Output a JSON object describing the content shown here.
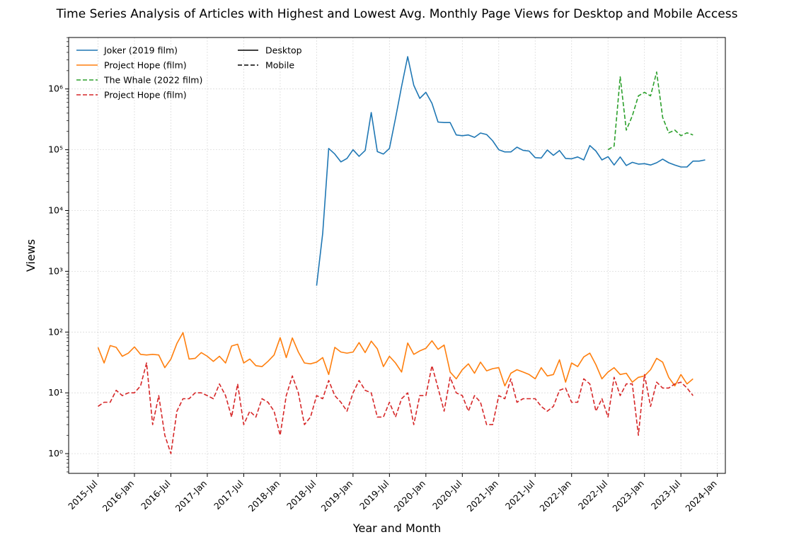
{
  "chart_data": {
    "type": "line",
    "title": "Time Series Analysis of Articles with Highest and Lowest Avg. Monthly Page Views for Desktop and Mobile Access",
    "xlabel": "Year and Month",
    "ylabel": "Views",
    "yscale": "log",
    "ylim": [
      0.5,
      7000000
    ],
    "xlim": [
      "2015-04",
      "2024-03"
    ],
    "grid": true,
    "legend_position": "top-left",
    "x_ticks": [
      "2015-Jul",
      "2016-Jan",
      "2016-Jul",
      "2017-Jan",
      "2017-Jul",
      "2018-Jan",
      "2018-Jul",
      "2019-Jan",
      "2019-Jul",
      "2020-Jan",
      "2020-Jul",
      "2021-Jan",
      "2021-Jul",
      "2022-Jan",
      "2022-Jul",
      "2023-Jan",
      "2023-Jul",
      "2024-Jan"
    ],
    "y_ticks": [
      {
        "value": 1,
        "label": "10⁰"
      },
      {
        "value": 10,
        "label": "10¹"
      },
      {
        "value": 100,
        "label": "10²"
      },
      {
        "value": 1000,
        "label": "10³"
      },
      {
        "value": 10000,
        "label": "10⁴"
      },
      {
        "value": 100000,
        "label": "10⁵"
      },
      {
        "value": 1000000,
        "label": "10⁶"
      }
    ],
    "style_legend": [
      {
        "label": "Desktop",
        "dash": "solid"
      },
      {
        "label": "Mobile",
        "dash": "dashed"
      }
    ],
    "series": [
      {
        "name": "Joker (2019 film)",
        "color": "#1f77b4",
        "dash": "solid",
        "start": "2018-07",
        "values": [
          580,
          4200,
          105000,
          85000,
          63000,
          72000,
          100000,
          78000,
          97000,
          410000,
          93000,
          85000,
          105000,
          330000,
          1100000,
          3400000,
          1150000,
          700000,
          880000,
          580000,
          285000,
          280000,
          280000,
          175000,
          170000,
          175000,
          160000,
          188000,
          178000,
          140000,
          100000,
          92000,
          92000,
          110000,
          98000,
          95000,
          74000,
          73000,
          99000,
          81000,
          97000,
          72000,
          71000,
          76000,
          68000,
          117000,
          95000,
          68000,
          77000,
          56000,
          76000,
          55000,
          62000,
          58000,
          59000,
          56000,
          61000,
          70000,
          61000,
          56000,
          52000,
          52000,
          65000,
          65000,
          68000
        ]
      },
      {
        "name": "Project Hope (film)",
        "color": "#ff7f0e",
        "dash": "solid",
        "start": "2015-07",
        "values": [
          56,
          31,
          60,
          56,
          40,
          45,
          57,
          43,
          42,
          43,
          42,
          26,
          36,
          65,
          98,
          36,
          37,
          46,
          40,
          33,
          40,
          31,
          59,
          63,
          31,
          36,
          28,
          27,
          33,
          42,
          81,
          38,
          80,
          47,
          31,
          30,
          32,
          38,
          20,
          56,
          47,
          45,
          47,
          67,
          46,
          71,
          53,
          27,
          40,
          31,
          22,
          66,
          43,
          49,
          54,
          72,
          52,
          61,
          22,
          17,
          24,
          30,
          21,
          32,
          23,
          25,
          26,
          13,
          21,
          24,
          22,
          20,
          17,
          26,
          19,
          20,
          35,
          15,
          31,
          27,
          39,
          45,
          29,
          17,
          22,
          26,
          20,
          21,
          15,
          18,
          19,
          24,
          37,
          32,
          18,
          13,
          20,
          14,
          17
        ]
      },
      {
        "name": "The Whale (2022 film)",
        "color": "#2ca02c",
        "dash": "dashed",
        "start": "2022-07",
        "values": [
          100000,
          115000,
          1580000,
          210000,
          360000,
          770000,
          880000,
          770000,
          1900000,
          340000,
          190000,
          210000,
          170000,
          190000,
          175000
        ]
      },
      {
        "name": "Project Hope (film)",
        "color": "#d62728",
        "dash": "dashed",
        "start": "2015-07",
        "values": [
          6,
          7,
          7,
          11,
          9,
          10,
          10,
          13,
          31,
          3,
          9,
          2,
          1,
          5,
          8,
          8,
          10,
          10,
          9,
          8,
          14,
          9,
          4,
          14,
          3,
          5,
          4,
          8,
          7,
          5,
          2,
          9,
          19,
          10,
          3,
          4,
          9,
          8,
          16,
          9,
          7,
          5,
          10,
          16,
          11,
          10,
          4,
          4,
          7,
          4,
          8,
          10,
          3,
          9,
          9,
          28,
          12,
          5,
          18,
          10,
          9,
          5,
          9,
          7,
          3,
          3,
          9,
          8,
          17,
          7,
          8,
          8,
          8,
          6,
          5,
          6,
          11,
          12,
          7,
          7,
          17,
          14,
          5,
          8,
          4,
          18,
          9,
          14,
          14,
          2,
          20,
          6,
          15,
          12,
          12,
          14,
          15,
          12,
          9
        ]
      }
    ]
  }
}
